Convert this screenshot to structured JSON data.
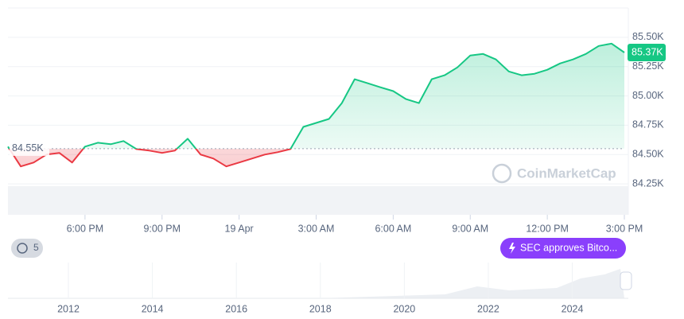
{
  "chart_data": {
    "type": "baseline-line",
    "x": [
      15,
      15.5,
      16,
      16.5,
      17,
      17.5,
      18,
      18.5,
      19,
      19.5,
      20,
      20.5,
      21,
      21.5,
      22,
      22.5,
      23,
      23.5,
      24,
      24.5,
      25,
      25.5,
      26,
      26.5,
      27,
      27.5,
      28,
      28.5,
      29,
      29.5,
      30,
      30.5,
      31,
      31.5,
      32,
      32.5,
      33,
      33.5,
      34,
      34.5,
      35,
      35.5,
      36,
      36.5,
      37,
      37.5,
      38,
      38.5,
      39
    ],
    "values": [
      84568,
      84399,
      84432,
      84500,
      84514,
      84432,
      84568,
      84601,
      84588,
      84615,
      84547,
      84534,
      84514,
      84534,
      84635,
      84500,
      84466,
      84399,
      84432,
      84466,
      84500,
      84520,
      84547,
      84736,
      84770,
      84804,
      84939,
      85142,
      85108,
      85074,
      85041,
      84973,
      84939,
      85142,
      85176,
      85243,
      85345,
      85358,
      85311,
      85209,
      85176,
      85189,
      85223,
      85277,
      85311,
      85358,
      85426,
      85446,
      85370
    ],
    "up_color": "#16c784",
    "down_color": "#ea3943",
    "baseline": {
      "value": 84550,
      "label": "84.55K"
    },
    "last_label": {
      "value": 85370,
      "label": "85.37K"
    },
    "xlim": [
      15,
      39
    ],
    "xticks": [
      {
        "value": 18,
        "label": "6:00 PM"
      },
      {
        "value": 21,
        "label": "9:00 PM"
      },
      {
        "value": 24,
        "label": "19 Apr"
      },
      {
        "value": 27,
        "label": "3:00 AM"
      },
      {
        "value": 30,
        "label": "6:00 AM"
      },
      {
        "value": 33,
        "label": "9:00 AM"
      },
      {
        "value": 36,
        "label": "12:00 PM"
      },
      {
        "value": 39,
        "label": "3:00 PM"
      }
    ],
    "ylim": [
      84000,
      85750
    ],
    "yticks": [
      {
        "value": 84250,
        "label": "84.25K"
      },
      {
        "value": 84500,
        "label": "84.50K"
      },
      {
        "value": 84750,
        "label": "84.75K"
      },
      {
        "value": 85000,
        "label": "85.00K"
      },
      {
        "value": 85250,
        "label": "85.25K"
      },
      {
        "value": 85500,
        "label": "85.50K"
      }
    ],
    "grid": true,
    "watermark": "CoinMarketCap",
    "event_count": "5",
    "event_label": "SEC approves Bitco...",
    "navigator_xlim": [
      2010.56,
      2025.24
    ],
    "navigator_xticks": [
      2012,
      2014,
      2016,
      2018,
      2020,
      2022,
      2024
    ]
  }
}
